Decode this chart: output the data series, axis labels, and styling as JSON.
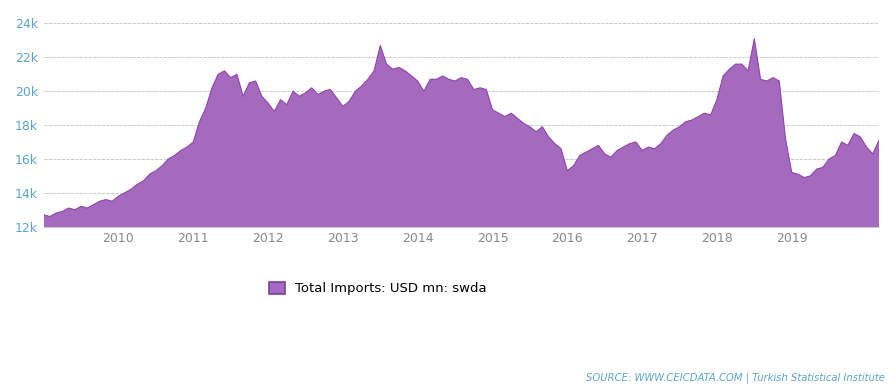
{
  "title": "",
  "legend_label": "Total Imports: USD mn: swda",
  "source_text": "SOURCE: WWW.CEICDATA.COM | Turkish Statistical Institute",
  "fill_color": "#A569BD",
  "fill_alpha": 1.0,
  "line_color": "#8E44AD",
  "background_color": "#ffffff",
  "grid_color": "#bbbbbb",
  "ytick_color": "#5ba4cf",
  "xtick_color": "#888888",
  "ylim": [
    12000,
    24500
  ],
  "yticks": [
    12000,
    14000,
    16000,
    18000,
    20000,
    22000,
    24000
  ],
  "ytick_labels": [
    "12k",
    "14k",
    "16k",
    "18k",
    "20k",
    "22k",
    "24k"
  ],
  "values": [
    12700,
    12600,
    12800,
    12900,
    13100,
    13000,
    13200,
    13100,
    13300,
    13500,
    13600,
    13500,
    13800,
    14000,
    14200,
    14500,
    14700,
    15100,
    15300,
    15600,
    16000,
    16200,
    16500,
    16700,
    17000,
    18200,
    19000,
    20200,
    21000,
    21200,
    20800,
    21000,
    19700,
    20500,
    20600,
    19700,
    19300,
    18800,
    19500,
    19200,
    20000,
    19700,
    19900,
    20200,
    19800,
    20000,
    20100,
    19600,
    19100,
    19400,
    20000,
    20300,
    20700,
    21200,
    22700,
    21600,
    21300,
    21400,
    21200,
    20900,
    20600,
    20000,
    20700,
    20700,
    20900,
    20700,
    20600,
    20800,
    20700,
    20100,
    20200,
    20100,
    18900,
    18700,
    18500,
    18700,
    18400,
    18100,
    17900,
    17600,
    17900,
    17300,
    16900,
    16600,
    15300,
    15600,
    16200,
    16400,
    16600,
    16800,
    16300,
    16100,
    16500,
    16700,
    16900,
    17000,
    16500,
    16700,
    16600,
    16900,
    17400,
    17700,
    17900,
    18200,
    18300,
    18500,
    18700,
    18600,
    19500,
    20900,
    21300,
    21600,
    21600,
    21200,
    23100,
    20700,
    20600,
    20800,
    20600,
    17200,
    15200,
    15100,
    14900,
    15000,
    15400,
    15500,
    16000,
    16200,
    17000,
    16800,
    17500,
    17300,
    16700,
    16300,
    17100
  ]
}
